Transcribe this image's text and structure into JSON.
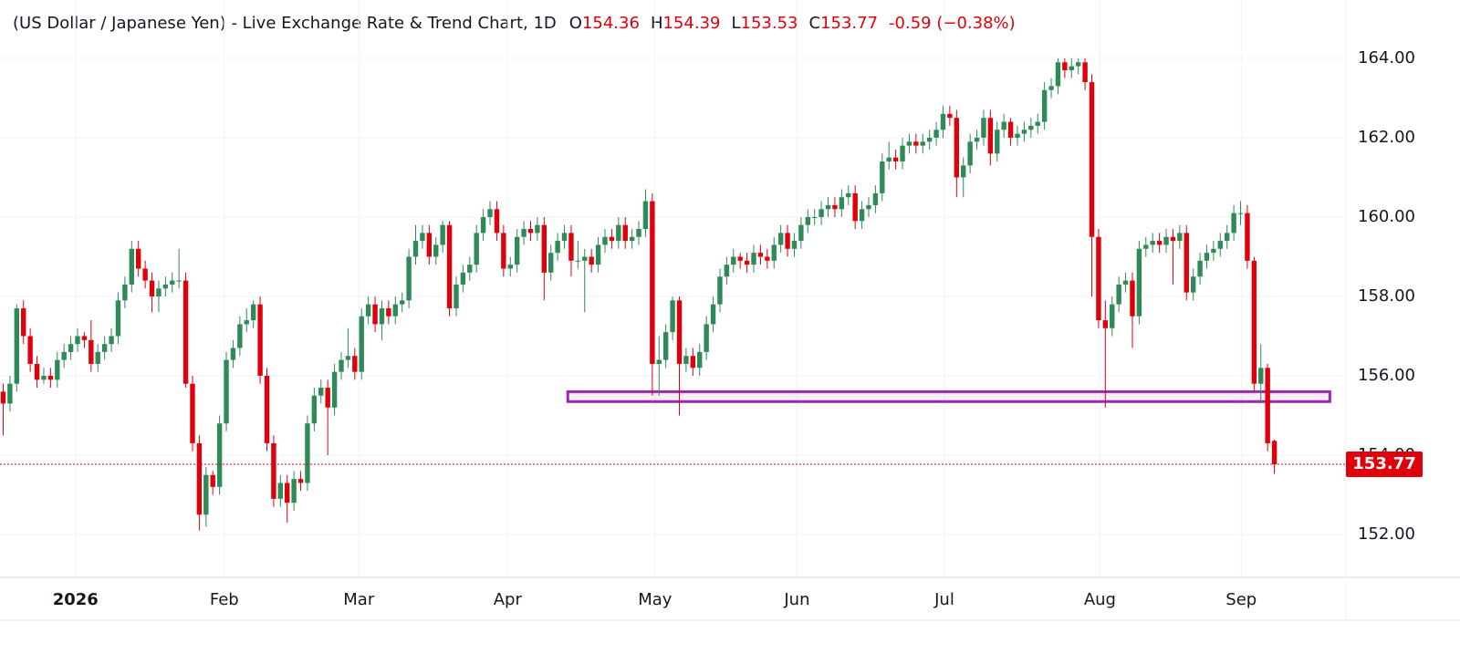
{
  "chart_data": {
    "type": "candlestick",
    "title": "(US Dollar / Japanese Yen) - Live Exchange Rate & Trend Chart, 1D",
    "ohlc_labels": [
      "O",
      "H",
      "L",
      "C"
    ],
    "change_label": "-0.59 (−0.38%)",
    "up_color": "#2e8b57",
    "down_color": "#e0000b",
    "zone_color": "#9c27b0",
    "grid": true,
    "ylim": [
      150.92,
      165.47
    ],
    "yticks": [
      {
        "value": 152,
        "label": "152.00"
      },
      {
        "value": 154,
        "label": "154.00"
      },
      {
        "value": 156,
        "label": "156.00"
      },
      {
        "value": 158,
        "label": "158.00"
      },
      {
        "value": 160,
        "label": "160.00"
      },
      {
        "value": 162,
        "label": "162.00"
      },
      {
        "value": 164,
        "label": "164.00"
      }
    ],
    "xticks": [
      {
        "value": 10.7,
        "label": "2026"
      },
      {
        "value": 32.7,
        "label": "Feb"
      },
      {
        "value": 52.6,
        "label": "Mar"
      },
      {
        "value": 74.6,
        "label": "Apr"
      },
      {
        "value": 96.4,
        "label": "May"
      },
      {
        "value": 117.4,
        "label": "Jun"
      },
      {
        "value": 139.2,
        "label": "Jul"
      },
      {
        "value": 162.2,
        "label": "Aug"
      },
      {
        "value": 183.1,
        "label": "Sep"
      }
    ],
    "zone": {
      "from": 83.5,
      "to": 196.2,
      "low": 155.35,
      "high": 155.6
    },
    "candles": [
      [
        155.6,
        155.8,
        154.5,
        155.3
      ],
      [
        155.3,
        156.0,
        155.1,
        155.8
      ],
      [
        155.8,
        157.8,
        155.6,
        157.7
      ],
      [
        157.7,
        157.9,
        156.8,
        157.0
      ],
      [
        157.0,
        157.2,
        156.1,
        156.3
      ],
      [
        156.3,
        156.5,
        155.7,
        155.9
      ],
      [
        155.9,
        156.2,
        155.8,
        156.0
      ],
      [
        156.0,
        156.2,
        155.7,
        155.9
      ],
      [
        155.9,
        156.6,
        155.7,
        156.4
      ],
      [
        156.4,
        156.8,
        156.2,
        156.6
      ],
      [
        156.6,
        157.0,
        156.4,
        156.8
      ],
      [
        156.8,
        157.2,
        156.6,
        157.0
      ],
      [
        157.0,
        157.1,
        156.7,
        156.9
      ],
      [
        156.9,
        157.4,
        156.1,
        156.3
      ],
      [
        156.3,
        156.8,
        156.1,
        156.6
      ],
      [
        156.6,
        157.0,
        156.4,
        156.8
      ],
      [
        156.8,
        157.2,
        156.6,
        157.0
      ],
      [
        157.0,
        158.1,
        156.8,
        157.9
      ],
      [
        157.9,
        158.5,
        157.7,
        158.3
      ],
      [
        158.3,
        159.4,
        158.1,
        159.2
      ],
      [
        159.2,
        159.4,
        158.5,
        158.7
      ],
      [
        158.7,
        158.9,
        158.2,
        158.4
      ],
      [
        158.4,
        158.6,
        157.6,
        158.0
      ],
      [
        158.0,
        158.4,
        157.6,
        158.2
      ],
      [
        158.2,
        158.5,
        158.0,
        158.3
      ],
      [
        158.3,
        158.6,
        158.1,
        158.4
      ],
      [
        158.4,
        159.2,
        158.2,
        158.4
      ],
      [
        158.4,
        158.6,
        155.7,
        155.8
      ],
      [
        155.8,
        156.0,
        154.1,
        154.3
      ],
      [
        154.3,
        154.5,
        152.1,
        152.5
      ],
      [
        152.5,
        153.7,
        152.2,
        153.5
      ],
      [
        153.5,
        153.6,
        153.0,
        153.2
      ],
      [
        153.2,
        155.0,
        153.0,
        154.8
      ],
      [
        154.8,
        156.6,
        154.6,
        156.4
      ],
      [
        156.4,
        156.9,
        156.2,
        156.7
      ],
      [
        156.7,
        157.5,
        156.5,
        157.3
      ],
      [
        157.3,
        157.7,
        157.1,
        157.4
      ],
      [
        157.4,
        157.9,
        157.2,
        157.8
      ],
      [
        157.8,
        158.0,
        155.8,
        156.0
      ],
      [
        156.0,
        156.2,
        154.1,
        154.3
      ],
      [
        154.3,
        154.5,
        152.7,
        152.9
      ],
      [
        152.9,
        153.5,
        152.7,
        153.3
      ],
      [
        153.3,
        153.5,
        152.3,
        152.8
      ],
      [
        152.8,
        153.6,
        152.6,
        153.4
      ],
      [
        153.4,
        153.6,
        153.1,
        153.3
      ],
      [
        153.3,
        155.0,
        153.1,
        154.8
      ],
      [
        154.8,
        155.7,
        154.6,
        155.5
      ],
      [
        155.5,
        155.9,
        155.3,
        155.7
      ],
      [
        155.7,
        155.9,
        154.0,
        155.2
      ],
      [
        155.2,
        156.3,
        155.0,
        156.1
      ],
      [
        156.1,
        156.6,
        155.9,
        156.4
      ],
      [
        156.4,
        157.2,
        156.2,
        156.5
      ],
      [
        156.5,
        156.7,
        155.9,
        156.1
      ],
      [
        156.1,
        157.7,
        155.9,
        157.5
      ],
      [
        157.5,
        158.0,
        157.3,
        157.8
      ],
      [
        157.8,
        158.0,
        157.1,
        157.3
      ],
      [
        157.3,
        157.9,
        156.9,
        157.7
      ],
      [
        157.7,
        157.9,
        157.3,
        157.5
      ],
      [
        157.5,
        158.0,
        157.3,
        157.8
      ],
      [
        157.8,
        158.1,
        157.6,
        157.9
      ],
      [
        157.9,
        159.2,
        157.7,
        159.0
      ],
      [
        159.0,
        159.8,
        158.8,
        159.4
      ],
      [
        159.4,
        159.8,
        159.2,
        159.6
      ],
      [
        159.6,
        159.8,
        158.8,
        159.0
      ],
      [
        159.0,
        159.5,
        158.8,
        159.3
      ],
      [
        159.3,
        159.9,
        159.1,
        159.8
      ],
      [
        159.8,
        159.9,
        157.5,
        157.7
      ],
      [
        157.7,
        158.5,
        157.5,
        158.3
      ],
      [
        158.3,
        158.8,
        158.1,
        158.6
      ],
      [
        158.6,
        159.0,
        158.4,
        158.8
      ],
      [
        158.8,
        159.8,
        158.6,
        159.6
      ],
      [
        159.6,
        160.2,
        159.4,
        160.0
      ],
      [
        160.0,
        160.4,
        159.8,
        160.2
      ],
      [
        160.2,
        160.4,
        159.4,
        159.6
      ],
      [
        159.6,
        159.8,
        158.5,
        158.7
      ],
      [
        158.7,
        159.0,
        158.5,
        158.8
      ],
      [
        158.8,
        159.7,
        158.6,
        159.5
      ],
      [
        159.5,
        159.9,
        159.3,
        159.7
      ],
      [
        159.7,
        159.9,
        159.4,
        159.6
      ],
      [
        159.6,
        160.0,
        159.4,
        159.8
      ],
      [
        159.8,
        160.0,
        157.9,
        158.6
      ],
      [
        158.6,
        159.3,
        158.4,
        159.1
      ],
      [
        159.1,
        159.6,
        158.9,
        159.4
      ],
      [
        159.4,
        159.8,
        159.2,
        159.6
      ],
      [
        159.6,
        159.8,
        158.5,
        158.9
      ],
      [
        158.9,
        159.4,
        158.7,
        158.9
      ],
      [
        158.9,
        159.2,
        157.6,
        159.0
      ],
      [
        159.0,
        159.2,
        158.6,
        158.8
      ],
      [
        158.8,
        159.5,
        158.6,
        159.3
      ],
      [
        159.3,
        159.7,
        159.1,
        159.5
      ],
      [
        159.5,
        159.7,
        159.2,
        159.4
      ],
      [
        159.4,
        160.0,
        159.2,
        159.8
      ],
      [
        159.8,
        160.0,
        159.2,
        159.4
      ],
      [
        159.4,
        159.7,
        159.2,
        159.5
      ],
      [
        159.5,
        159.9,
        159.3,
        159.7
      ],
      [
        159.7,
        160.7,
        159.5,
        160.4
      ],
      [
        160.4,
        160.6,
        155.5,
        156.3
      ],
      [
        156.3,
        157.0,
        155.5,
        156.4
      ],
      [
        156.4,
        157.3,
        156.2,
        157.1
      ],
      [
        157.1,
        158.0,
        156.9,
        157.9
      ],
      [
        157.9,
        158.0,
        155.0,
        156.3
      ],
      [
        156.3,
        156.7,
        156.1,
        156.5
      ],
      [
        156.5,
        156.7,
        156.0,
        156.2
      ],
      [
        156.2,
        156.8,
        156.0,
        156.6
      ],
      [
        156.6,
        157.5,
        156.4,
        157.3
      ],
      [
        157.3,
        158.0,
        157.1,
        157.8
      ],
      [
        157.8,
        158.7,
        157.6,
        158.5
      ],
      [
        158.5,
        159.0,
        158.3,
        158.8
      ],
      [
        158.8,
        159.2,
        158.6,
        159.0
      ],
      [
        159.0,
        159.1,
        158.7,
        158.9
      ],
      [
        158.9,
        159.1,
        158.6,
        158.8
      ],
      [
        158.8,
        159.3,
        158.6,
        159.1
      ],
      [
        159.1,
        159.3,
        158.8,
        159.0
      ],
      [
        159.0,
        159.2,
        158.7,
        158.9
      ],
      [
        158.9,
        159.5,
        158.7,
        159.3
      ],
      [
        159.3,
        159.8,
        159.1,
        159.6
      ],
      [
        159.6,
        159.8,
        159.0,
        159.2
      ],
      [
        159.2,
        159.6,
        159.0,
        159.4
      ],
      [
        159.4,
        160.0,
        159.2,
        159.8
      ],
      [
        159.8,
        160.2,
        159.6,
        160.0
      ],
      [
        160.0,
        160.2,
        159.8,
        160.0
      ],
      [
        160.0,
        160.4,
        159.8,
        160.2
      ],
      [
        160.2,
        160.5,
        160.0,
        160.3
      ],
      [
        160.3,
        160.5,
        160.0,
        160.2
      ],
      [
        160.2,
        160.7,
        160.0,
        160.5
      ],
      [
        160.5,
        160.8,
        160.3,
        160.6
      ],
      [
        160.6,
        160.8,
        159.7,
        159.9
      ],
      [
        159.9,
        160.4,
        159.7,
        160.2
      ],
      [
        160.2,
        160.5,
        160.0,
        160.3
      ],
      [
        160.3,
        160.8,
        160.1,
        160.6
      ],
      [
        160.6,
        161.6,
        160.4,
        161.4
      ],
      [
        161.4,
        161.9,
        161.2,
        161.5
      ],
      [
        161.5,
        161.7,
        161.2,
        161.4
      ],
      [
        161.4,
        162.0,
        161.2,
        161.8
      ],
      [
        161.8,
        162.1,
        161.6,
        161.9
      ],
      [
        161.9,
        162.1,
        161.6,
        161.8
      ],
      [
        161.8,
        162.1,
        161.6,
        161.9
      ],
      [
        161.9,
        162.2,
        161.7,
        162.0
      ],
      [
        162.0,
        162.4,
        161.8,
        162.2
      ],
      [
        162.2,
        162.8,
        162.0,
        162.6
      ],
      [
        162.6,
        162.8,
        162.3,
        162.5
      ],
      [
        162.5,
        162.7,
        160.5,
        161.0
      ],
      [
        161.0,
        161.5,
        160.5,
        161.3
      ],
      [
        161.3,
        162.1,
        161.1,
        161.9
      ],
      [
        161.9,
        162.2,
        161.7,
        162.0
      ],
      [
        162.0,
        162.7,
        161.8,
        162.5
      ],
      [
        162.5,
        162.7,
        161.3,
        161.6
      ],
      [
        161.6,
        162.4,
        161.4,
        162.2
      ],
      [
        162.2,
        162.6,
        162.0,
        162.4
      ],
      [
        162.4,
        162.5,
        161.8,
        162.0
      ],
      [
        162.0,
        162.3,
        161.8,
        162.1
      ],
      [
        162.1,
        162.4,
        161.9,
        162.2
      ],
      [
        162.2,
        162.5,
        162.0,
        162.3
      ],
      [
        162.3,
        162.6,
        162.1,
        162.4
      ],
      [
        162.4,
        163.4,
        162.2,
        163.2
      ],
      [
        163.2,
        163.5,
        163.0,
        163.3
      ],
      [
        163.3,
        164.0,
        163.1,
        163.9
      ],
      [
        163.9,
        164.0,
        163.5,
        163.7
      ],
      [
        163.7,
        164.0,
        163.5,
        163.8
      ],
      [
        163.8,
        164.0,
        163.6,
        163.9
      ],
      [
        163.9,
        164.0,
        163.2,
        163.4
      ],
      [
        163.4,
        163.6,
        158.0,
        159.5
      ],
      [
        159.5,
        159.7,
        157.2,
        157.4
      ],
      [
        157.4,
        157.9,
        155.2,
        157.2
      ],
      [
        157.2,
        158.0,
        157.0,
        157.8
      ],
      [
        157.8,
        158.5,
        157.6,
        158.3
      ],
      [
        158.3,
        158.6,
        158.1,
        158.4
      ],
      [
        158.4,
        158.6,
        156.7,
        157.5
      ],
      [
        157.5,
        159.4,
        157.3,
        159.2
      ],
      [
        159.2,
        159.5,
        159.0,
        159.3
      ],
      [
        159.3,
        159.6,
        159.1,
        159.4
      ],
      [
        159.4,
        159.6,
        159.1,
        159.3
      ],
      [
        159.3,
        159.7,
        159.1,
        159.5
      ],
      [
        159.5,
        159.7,
        158.3,
        159.4
      ],
      [
        159.4,
        159.8,
        159.2,
        159.6
      ],
      [
        159.6,
        159.8,
        157.9,
        158.1
      ],
      [
        158.1,
        158.7,
        157.9,
        158.5
      ],
      [
        158.5,
        159.1,
        158.3,
        158.9
      ],
      [
        158.9,
        159.3,
        158.7,
        159.1
      ],
      [
        159.1,
        159.4,
        158.9,
        159.2
      ],
      [
        159.2,
        159.6,
        159.0,
        159.4
      ],
      [
        159.4,
        159.8,
        159.2,
        159.6
      ],
      [
        159.6,
        160.3,
        159.4,
        160.1
      ],
      [
        160.1,
        160.4,
        159.8,
        160.1
      ],
      [
        160.1,
        160.3,
        158.7,
        158.9
      ],
      [
        158.9,
        159.0,
        155.6,
        155.8
      ],
      [
        155.8,
        156.8,
        155.3,
        156.2
      ],
      [
        156.2,
        156.3,
        154.1,
        154.3
      ],
      [
        154.36,
        154.39,
        153.53,
        153.77
      ]
    ]
  }
}
